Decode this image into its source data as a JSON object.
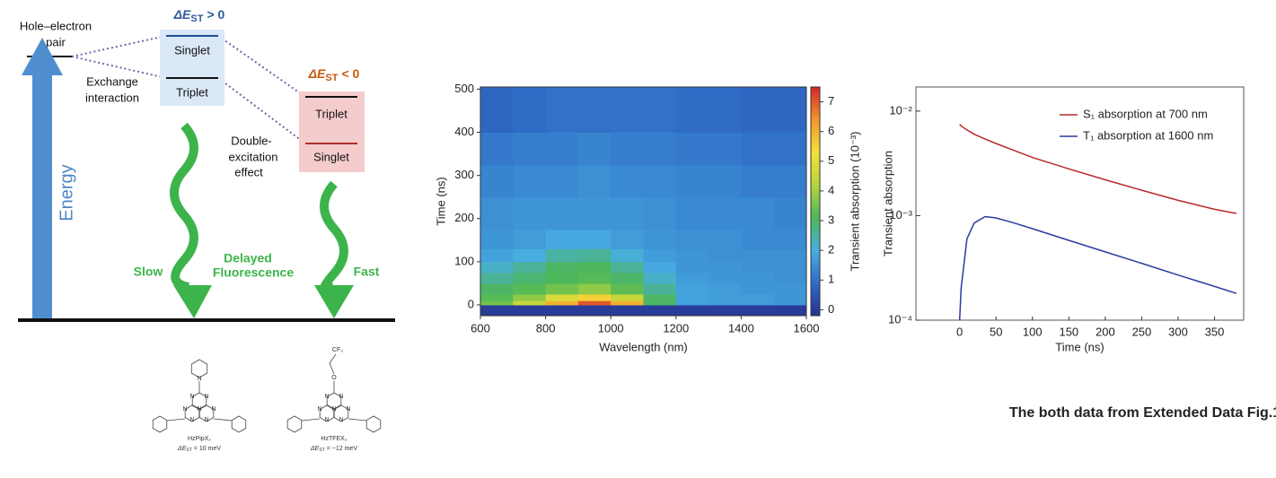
{
  "diagram": {
    "pair_label": [
      "Hole–electron",
      "pair"
    ],
    "positive_gap": {
      "symbol": "ΔE",
      "subscript": "ST",
      "relation": "> 0"
    },
    "negative_gap": {
      "symbol": "ΔE",
      "subscript": "ST",
      "relation": "< 0"
    },
    "positive_states": [
      "Singlet",
      "Triplet"
    ],
    "negative_states": [
      "Triplet",
      "Singlet"
    ],
    "exchange": [
      "Exchange",
      "interaction"
    ],
    "double_excitation": [
      "Double-",
      "excitation",
      "effect"
    ],
    "energy": "Energy",
    "slow": "Slow",
    "delayed": [
      "Delayed",
      "Fluorescence"
    ],
    "fast": "Fast"
  },
  "molecules": [
    {
      "name": "HzPipX₂",
      "gap": {
        "symbol": "ΔE",
        "subscript": "ST",
        "relation": "= 10 meV"
      },
      "atoms": [
        "N",
        "N",
        "N",
        "N",
        "N",
        "N",
        "N",
        "N"
      ]
    },
    {
      "name": "HzTFEX₂",
      "gap": {
        "symbol": "ΔE",
        "subscript": "ST",
        "relation": "= −12 meV"
      },
      "atoms": [
        "N",
        "N",
        "N",
        "N",
        "N",
        "N",
        "N",
        "O",
        "CF₃"
      ]
    }
  ],
  "chart_data": [
    {
      "type": "heatmap",
      "x_label": "Wavelength (nm)",
      "y_label": "Time (ns)",
      "colorbar_label": "Transient absorption (10⁻³)",
      "x": [
        600,
        700,
        800,
        900,
        1000,
        1100,
        1200,
        1300,
        1400,
        1500,
        1600
      ],
      "y": [
        -25,
        0,
        10,
        25,
        50,
        75,
        100,
        130,
        175,
        250,
        325,
        400,
        505
      ],
      "z": [
        [
          0,
          0,
          0,
          0,
          0,
          0,
          0,
          0,
          0,
          0
        ],
        [
          3.5,
          4.5,
          6,
          7,
          6,
          3,
          1.8,
          1.7,
          1.7,
          1.6
        ],
        [
          3.2,
          3.8,
          4.8,
          5.5,
          4.5,
          3,
          1.8,
          1.7,
          1.7,
          1.6
        ],
        [
          3,
          3.2,
          3.5,
          3.8,
          3.3,
          2.6,
          1.8,
          1.7,
          1.6,
          1.6
        ],
        [
          2.6,
          2.9,
          3.1,
          3.2,
          3,
          2.2,
          1.7,
          1.6,
          1.6,
          1.5
        ],
        [
          2.2,
          2.6,
          3,
          3.1,
          2.6,
          1.9,
          1.6,
          1.6,
          1.5,
          1.5
        ],
        [
          1.8,
          2,
          2.5,
          2.6,
          2.1,
          1.7,
          1.6,
          1.5,
          1.5,
          1.5
        ],
        [
          1.6,
          1.7,
          1.9,
          1.9,
          1.7,
          1.6,
          1.5,
          1.5,
          1.4,
          1.4
        ],
        [
          1.5,
          1.6,
          1.6,
          1.6,
          1.6,
          1.5,
          1.4,
          1.4,
          1.4,
          1.3
        ],
        [
          1.3,
          1.4,
          1.4,
          1.5,
          1.4,
          1.4,
          1.3,
          1.3,
          1.2,
          1.2
        ],
        [
          1.1,
          1.2,
          1.2,
          1.3,
          1.2,
          1.2,
          1.1,
          1.1,
          1,
          1
        ],
        [
          0.8,
          0.9,
          1,
          1,
          1,
          1,
          0.9,
          0.9,
          0.8,
          0.8
        ]
      ],
      "xlim": [
        600,
        1600
      ],
      "xticks": [
        600,
        800,
        1000,
        1200,
        1400,
        1600
      ],
      "ylim": [
        -25,
        505
      ],
      "yticks": [
        0,
        100,
        200,
        300,
        400,
        500
      ],
      "clim": [
        -0.2,
        7.5
      ],
      "cticks": [
        0,
        1,
        2,
        3,
        4,
        5,
        6,
        7
      ],
      "colormap": [
        "#27318f",
        "#2f6cc6",
        "#48aee0",
        "#4cb75a",
        "#b6d43a",
        "#f5e03a",
        "#f1952a",
        "#d3262b"
      ]
    },
    {
      "type": "line",
      "x_label": "Time (ns)",
      "y_label": "Transient absorption",
      "log_y": true,
      "x": [
        0,
        2,
        10,
        20,
        35,
        50,
        75,
        100,
        150,
        200,
        250,
        300,
        350,
        380
      ],
      "series": [
        {
          "name": "S₁ absorption at 700 nm",
          "color": "#b8282e",
          "values": [
            0.0075,
            0.0072,
            0.0066,
            0.006,
            0.0054,
            0.0049,
            0.0042,
            0.0036,
            0.0028,
            0.0022,
            0.00175,
            0.0014,
            0.00115,
            0.00105
          ]
        },
        {
          "name": "T₁ absorption at 1600 nm",
          "color": "#2b3b9e",
          "values": [
            0.0001,
            0.0002,
            0.0006,
            0.00085,
            0.00098,
            0.00095,
            0.00085,
            0.00075,
            0.00058,
            0.00045,
            0.00035,
            0.00027,
            0.00021,
            0.00018
          ]
        }
      ],
      "xlim": [
        -60,
        390
      ],
      "xticks": [
        0,
        50,
        100,
        150,
        200,
        250,
        300,
        350
      ],
      "ylim": [
        0.0001,
        0.017
      ],
      "yticks": [
        {
          "value": 0.0001,
          "label": "10⁻⁴"
        },
        {
          "value": 0.001,
          "label": "10⁻³"
        },
        {
          "value": 0.01,
          "label": "10⁻²"
        }
      ],
      "legend": "upper right"
    }
  ],
  "caption": "The both data from Extended Data Fig.1"
}
